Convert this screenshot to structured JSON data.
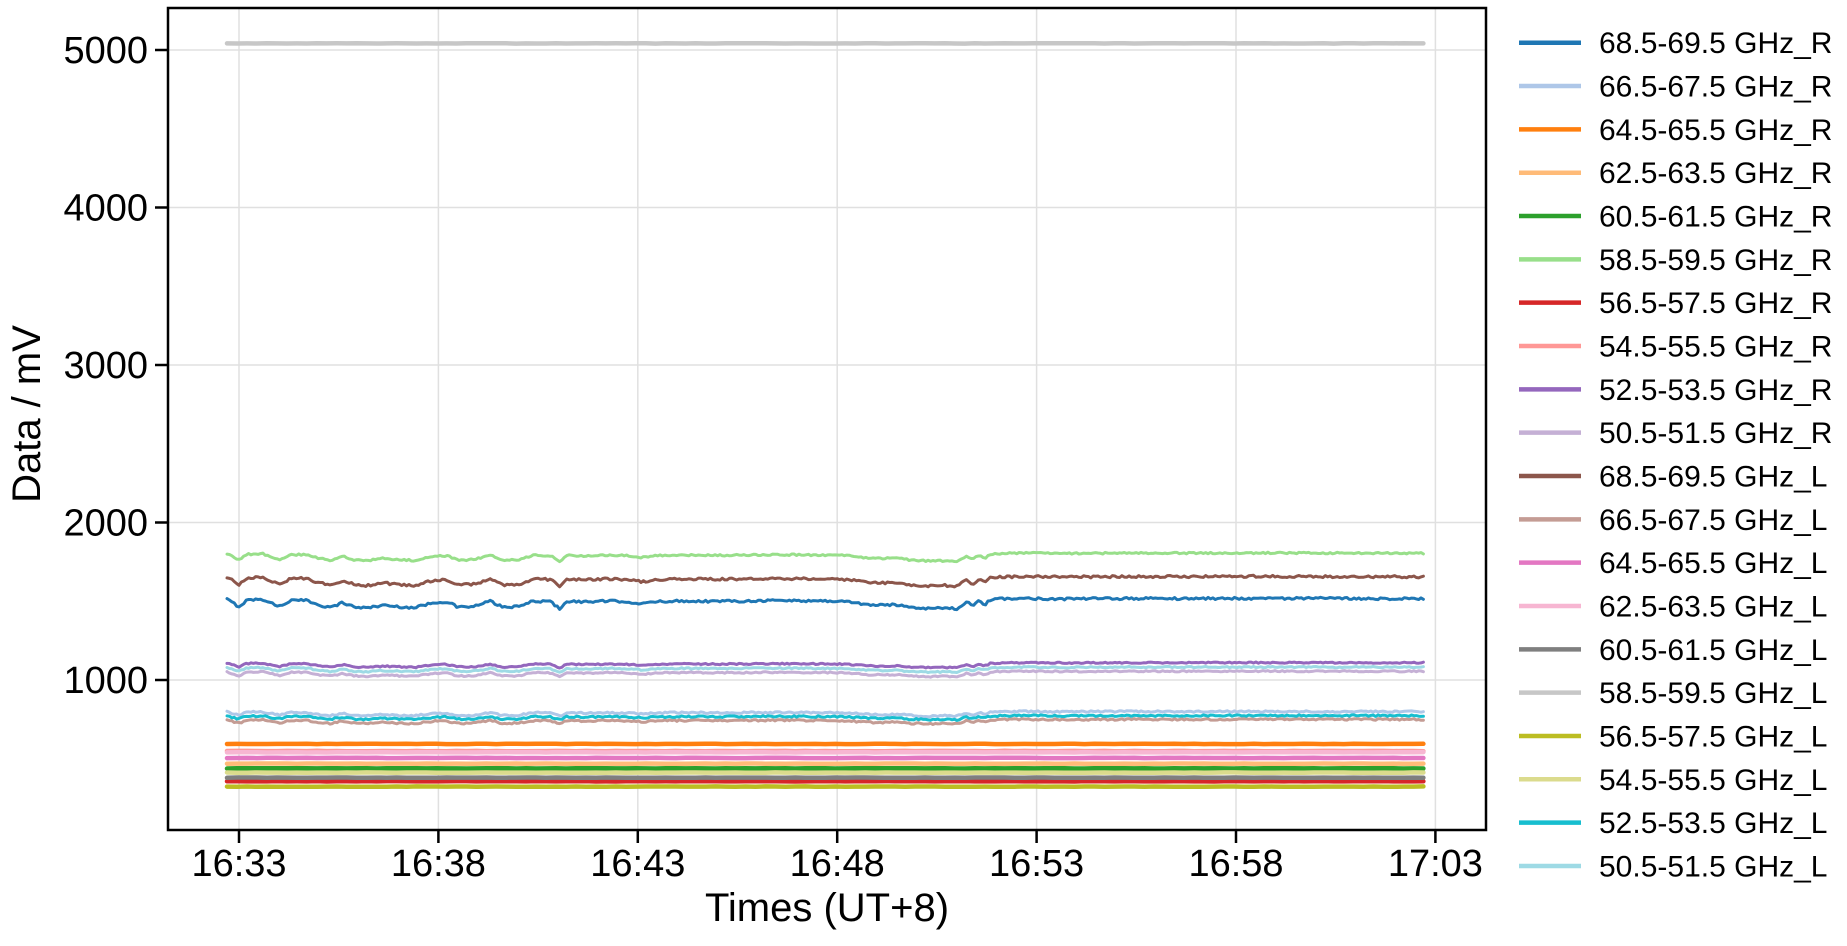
{
  "chart_data": {
    "type": "line",
    "title": "",
    "xlabel": "Times (UT+8)",
    "ylabel": "Data / mV",
    "grid": true,
    "legend_position": "right-outside",
    "x_axis": {
      "tick_labels": [
        "16:33",
        "16:38",
        "16:43",
        "16:48",
        "16:53",
        "16:58",
        "17:03"
      ],
      "tick_minutes": [
        3,
        8,
        13,
        18,
        23,
        28,
        33
      ],
      "xlim_minutes": [
        1.2,
        34.3
      ],
      "data_start_minute": 2.7,
      "data_end_minute": 32.7,
      "minutes_origin": "16:30"
    },
    "y_axis": {
      "tick_labels": [
        "1000",
        "2000",
        "3000",
        "4000",
        "5000"
      ],
      "tick_values": [
        1000,
        2000,
        3000,
        4000,
        5000
      ],
      "ylim": [
        48,
        5267
      ]
    },
    "profile": {
      "comment": "shared wiggle profile: offset in mV from series end-level vs minutes since 16:30; per-series value = base_mV + profile_scale * offset",
      "t": [
        2.7,
        3.0,
        3.2,
        3.6,
        4.0,
        4.3,
        4.7,
        5.0,
        5.3,
        5.6,
        5.9,
        6.2,
        6.6,
        7.0,
        7.4,
        7.9,
        8.2,
        8.5,
        8.9,
        9.3,
        9.6,
        10.0,
        10.4,
        10.8,
        11.05,
        11.2,
        11.7,
        12.2,
        12.7,
        13.1,
        13.5,
        14.2,
        14.9,
        15.7,
        16.3,
        16.9,
        17.7,
        18.3,
        18.7,
        19.1,
        19.5,
        19.9,
        20.3,
        20.7,
        21.0,
        21.25,
        21.4,
        21.55,
        21.7,
        21.85,
        22.2,
        22.7,
        23.7,
        24.7,
        25.7,
        26.7,
        27.7,
        28.7,
        29.7,
        30.7,
        31.7,
        32.7
      ],
      "offset": [
        -5,
        -53,
        -10,
        -6,
        -51,
        -13,
        -13,
        -41,
        -58,
        -26,
        -55,
        -60,
        -43,
        -53,
        -59,
        -25,
        -21,
        -56,
        -51,
        -17,
        -55,
        -53,
        -16,
        -20,
        -66,
        -18,
        -22,
        -17,
        -19,
        -36,
        -19,
        -16,
        -18,
        -16,
        -13,
        -14,
        -16,
        -20,
        -39,
        -43,
        -40,
        -57,
        -63,
        -60,
        -66,
        -21,
        -50,
        -18,
        -40,
        -8,
        -2,
        0,
        -3,
        -1,
        0,
        -1,
        0,
        1,
        0,
        0,
        -1,
        -2
      ]
    },
    "series": [
      {
        "label": "68.5-69.5 GHz_R",
        "color": "#1f77b4",
        "base_mV": 1518,
        "profile_scale": 1.0,
        "noise_mV": 7,
        "stroke": 3
      },
      {
        "label": "66.5-67.5 GHz_R",
        "color": "#aec7e8",
        "base_mV": 800,
        "profile_scale": 0.45,
        "noise_mV": 5,
        "stroke": 3
      },
      {
        "label": "64.5-65.5 GHz_R",
        "color": "#ff7f0e",
        "base_mV": 594,
        "profile_scale": 0,
        "noise_mV": 1.2,
        "stroke": 4.5
      },
      {
        "label": "62.5-63.5 GHz_R",
        "color": "#ffbb78",
        "base_mV": 469,
        "profile_scale": 0,
        "noise_mV": 1.2,
        "stroke": 4.5
      },
      {
        "label": "60.5-61.5 GHz_R",
        "color": "#2ca02c",
        "base_mV": 439,
        "profile_scale": 0,
        "noise_mV": 1.2,
        "stroke": 4.5
      },
      {
        "label": "58.5-59.5 GHz_R",
        "color": "#98df8a",
        "base_mV": 1806,
        "profile_scale": 0.8,
        "noise_mV": 5,
        "stroke": 3
      },
      {
        "label": "56.5-57.5 GHz_R",
        "color": "#d62728",
        "base_mV": 357,
        "profile_scale": 0,
        "noise_mV": 1.2,
        "stroke": 4.5
      },
      {
        "label": "54.5-55.5 GHz_R",
        "color": "#ff9896",
        "base_mV": 549,
        "profile_scale": 0,
        "noise_mV": 1.2,
        "stroke": 4.5
      },
      {
        "label": "52.5-53.5 GHz_R",
        "color": "#9467bd",
        "base_mV": 1110,
        "profile_scale": 0.5,
        "noise_mV": 4,
        "stroke": 3
      },
      {
        "label": "50.5-51.5 GHz_R",
        "color": "#c5b0d5",
        "base_mV": 1056,
        "profile_scale": 0.55,
        "noise_mV": 4,
        "stroke": 3
      },
      {
        "label": "68.5-69.5 GHz_L",
        "color": "#8c564b",
        "base_mV": 1657,
        "profile_scale": 0.95,
        "noise_mV": 7,
        "stroke": 3
      },
      {
        "label": "66.5-67.5 GHz_L",
        "color": "#c49c94",
        "base_mV": 750,
        "profile_scale": 0.45,
        "noise_mV": 5,
        "stroke": 3
      },
      {
        "label": "64.5-65.5 GHz_L",
        "color": "#e377c2",
        "base_mV": 505,
        "profile_scale": 0,
        "noise_mV": 1.2,
        "stroke": 4.5
      },
      {
        "label": "62.5-63.5 GHz_L",
        "color": "#f7b6d2",
        "base_mV": 541,
        "profile_scale": 0,
        "noise_mV": 1.2,
        "stroke": 4.5
      },
      {
        "label": "60.5-61.5 GHz_L",
        "color": "#7f7f7f",
        "base_mV": 380,
        "profile_scale": 0,
        "noise_mV": 1.2,
        "stroke": 4.5
      },
      {
        "label": "58.5-59.5 GHz_L",
        "color": "#c7c7c7",
        "base_mV": 5042,
        "profile_scale": 0,
        "noise_mV": 1.2,
        "stroke": 4.5
      },
      {
        "label": "56.5-57.5 GHz_L",
        "color": "#bcbd22",
        "base_mV": 323,
        "profile_scale": 0,
        "noise_mV": 1.2,
        "stroke": 4.5
      },
      {
        "label": "54.5-55.5 GHz_L",
        "color": "#dbdb8d",
        "base_mV": 412,
        "profile_scale": 0,
        "noise_mV": 1.2,
        "stroke": 4.5
      },
      {
        "label": "52.5-53.5 GHz_L",
        "color": "#17becf",
        "base_mV": 774,
        "profile_scale": 0.4,
        "noise_mV": 5,
        "stroke": 3
      },
      {
        "label": "50.5-51.5 GHz_L",
        "color": "#9edae5",
        "base_mV": 1082,
        "profile_scale": 0.5,
        "noise_mV": 4,
        "stroke": 3
      }
    ],
    "style": {
      "grid_color": "#e0e0e0",
      "axis_color": "#000000",
      "background": "#ffffff"
    }
  }
}
